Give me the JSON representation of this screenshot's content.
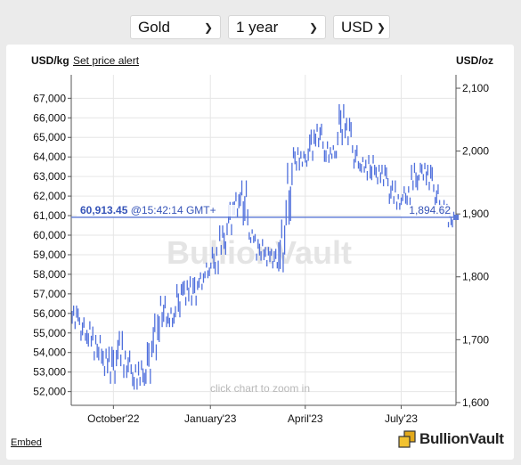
{
  "selectors": {
    "metal": "Gold",
    "period": "1 year",
    "currency": "USD"
  },
  "header": {
    "left_unit": "USD/kg",
    "set_price_alert": "Set price alert",
    "right_unit": "USD/oz"
  },
  "watermark": "BullionVault",
  "zoom_hint": "click chart to zoom in",
  "footer": {
    "embed": "Embed",
    "brand": "BullionVault"
  },
  "colors": {
    "series": "#4f6fdc",
    "current_line": "#5b78d6",
    "label_text": "#3654b8",
    "grid": "#e6e6e6"
  },
  "chart_data": {
    "type": "ohlc",
    "title": "",
    "xlabel": "",
    "ylabel_left": "USD/kg",
    "ylabel_right": "USD/oz",
    "ylim_left": [
      51300,
      68200
    ],
    "ylim_right": [
      1595.6,
      2121.3
    ],
    "y_ticks_left": [
      "52,000",
      "53,000",
      "54,000",
      "55,000",
      "56,000",
      "57,000",
      "58,000",
      "59,000",
      "60,000",
      "61,000",
      "62,000",
      "63,000",
      "64,000",
      "65,000",
      "66,000",
      "67,000"
    ],
    "y_tick_values_left": [
      52000,
      53000,
      54000,
      55000,
      56000,
      57000,
      58000,
      59000,
      60000,
      61000,
      62000,
      63000,
      64000,
      65000,
      66000,
      67000
    ],
    "y_ticks_right": [
      "1,600",
      "1,700",
      "1,800",
      "1,900",
      "2,000",
      "2,100"
    ],
    "y_tick_values_right": [
      1600,
      1700,
      1800,
      1900,
      2000,
      2100
    ],
    "x_ticks": [
      "October'22",
      "January'23",
      "April'23",
      "July'23"
    ],
    "x_tick_dates": [
      "2022-10-01",
      "2023-01-01",
      "2023-04-01",
      "2023-07-01"
    ],
    "x_range": [
      "2022-08-22",
      "2023-08-22"
    ],
    "grid": true,
    "current_price_kg": "60,913.45",
    "current_time": "@15:42:14 GMT+",
    "current_price_oz": "1,894.62",
    "current_value_kg": 60913.45,
    "series": [
      {
        "values": [
          [
            "2022-08-22",
            55200,
            56400
          ],
          [
            "2022-08-29",
            54600,
            55800
          ],
          [
            "2022-09-05",
            54300,
            55600
          ],
          [
            "2022-09-12",
            53600,
            54900
          ],
          [
            "2022-09-19",
            52800,
            54200
          ],
          [
            "2022-09-26",
            52400,
            54300
          ],
          [
            "2022-10-03",
            53300,
            55100
          ],
          [
            "2022-10-10",
            52700,
            54100
          ],
          [
            "2022-10-17",
            52100,
            53400
          ],
          [
            "2022-10-24",
            52300,
            53600
          ],
          [
            "2022-10-31",
            52400,
            54600
          ],
          [
            "2022-11-07",
            53600,
            56000
          ],
          [
            "2022-11-14",
            55300,
            56900
          ],
          [
            "2022-11-21",
            55300,
            56300
          ],
          [
            "2022-11-28",
            55800,
            57500
          ],
          [
            "2022-12-05",
            56400,
            57700
          ],
          [
            "2022-12-12",
            56400,
            57900
          ],
          [
            "2022-12-19",
            57200,
            58100
          ],
          [
            "2022-12-26",
            57800,
            58600
          ],
          [
            "2023-01-02",
            58000,
            59400
          ],
          [
            "2023-01-09",
            59000,
            60500
          ],
          [
            "2023-01-16",
            60000,
            61700
          ],
          [
            "2023-01-23",
            60900,
            62200
          ],
          [
            "2023-01-30",
            60500,
            62800
          ],
          [
            "2023-02-06",
            59600,
            60300
          ],
          [
            "2023-02-13",
            58700,
            59800
          ],
          [
            "2023-02-20",
            58400,
            59400
          ],
          [
            "2023-02-27",
            58300,
            59300
          ],
          [
            "2023-03-06",
            58100,
            60800
          ],
          [
            "2023-03-13",
            60500,
            63700
          ],
          [
            "2023-03-20",
            63300,
            64500
          ],
          [
            "2023-03-27",
            63500,
            64300
          ],
          [
            "2023-04-03",
            63800,
            65400
          ],
          [
            "2023-04-10",
            64500,
            65700
          ],
          [
            "2023-04-17",
            63700,
            64800
          ],
          [
            "2023-04-24",
            63900,
            64600
          ],
          [
            "2023-05-01",
            64600,
            66700
          ],
          [
            "2023-05-08",
            64600,
            66000
          ],
          [
            "2023-05-15",
            63400,
            64600
          ],
          [
            "2023-05-22",
            63200,
            64000
          ],
          [
            "2023-05-29",
            62800,
            64100
          ],
          [
            "2023-06-05",
            62600,
            63600
          ],
          [
            "2023-06-12",
            62500,
            63600
          ],
          [
            "2023-06-19",
            61600,
            62800
          ],
          [
            "2023-06-26",
            61300,
            62100
          ],
          [
            "2023-07-03",
            61500,
            62500
          ],
          [
            "2023-07-10",
            62300,
            63700
          ],
          [
            "2023-07-17",
            62800,
            63700
          ],
          [
            "2023-07-24",
            62300,
            63600
          ],
          [
            "2023-07-31",
            61400,
            62600
          ],
          [
            "2023-08-07",
            61000,
            61800
          ],
          [
            "2023-08-14",
            60400,
            61200
          ]
        ]
      }
    ]
  }
}
